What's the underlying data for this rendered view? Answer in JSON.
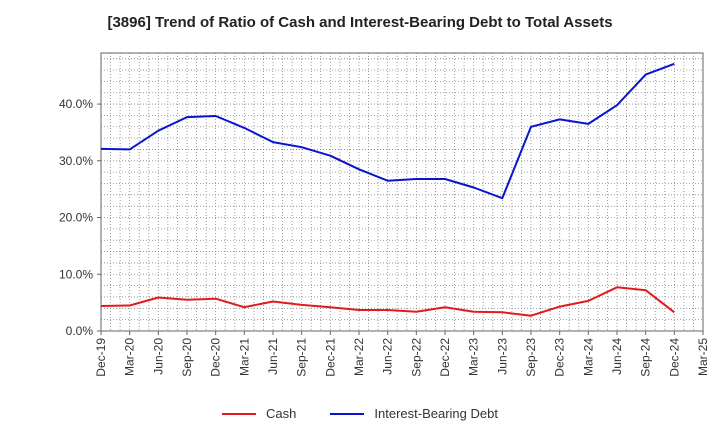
{
  "chart_data": {
    "type": "line",
    "title": "[3896]  Trend of Ratio of Cash and Interest-Bearing Debt to Total Assets",
    "xlabel": "",
    "ylabel": "",
    "x": [
      "Dec-19",
      "Mar-20",
      "Jun-20",
      "Sep-20",
      "Dec-20",
      "Mar-21",
      "Jun-21",
      "Sep-21",
      "Dec-21",
      "Mar-22",
      "Jun-22",
      "Sep-22",
      "Dec-22",
      "Mar-23",
      "Jun-23",
      "Sep-23",
      "Dec-23",
      "Mar-24",
      "Jun-24",
      "Sep-24",
      "Dec-24"
    ],
    "x_ticks": [
      "Dec-19",
      "Mar-20",
      "Jun-20",
      "Sep-20",
      "Dec-20",
      "Mar-21",
      "Jun-21",
      "Sep-21",
      "Dec-21",
      "Mar-22",
      "Jun-22",
      "Sep-22",
      "Dec-22",
      "Mar-23",
      "Jun-23",
      "Sep-23",
      "Dec-23",
      "Mar-24",
      "Jun-24",
      "Sep-24",
      "Dec-24",
      "Mar-25"
    ],
    "y_ticks": [
      "0.0%",
      "10.0%",
      "20.0%",
      "30.0%",
      "40.0%"
    ],
    "ylim": [
      0,
      49
    ],
    "grid": true,
    "legend_position": "bottom",
    "series": [
      {
        "name": "Cash",
        "color": "#e31a1c",
        "values": [
          4.4,
          4.5,
          5.9,
          5.5,
          5.7,
          4.2,
          5.2,
          4.6,
          4.2,
          3.7,
          3.7,
          3.4,
          4.2,
          3.4,
          3.3,
          2.7,
          4.3,
          5.3,
          7.7,
          7.2,
          3.3
        ]
      },
      {
        "name": "Interest-Bearing Debt",
        "color": "#0a14cc",
        "values": [
          32.1,
          32.0,
          35.3,
          37.7,
          37.9,
          35.8,
          33.3,
          32.4,
          30.9,
          28.5,
          26.5,
          26.8,
          26.8,
          25.3,
          23.4,
          36.0,
          37.3,
          36.5,
          39.8,
          45.2,
          47.1
        ]
      }
    ]
  }
}
